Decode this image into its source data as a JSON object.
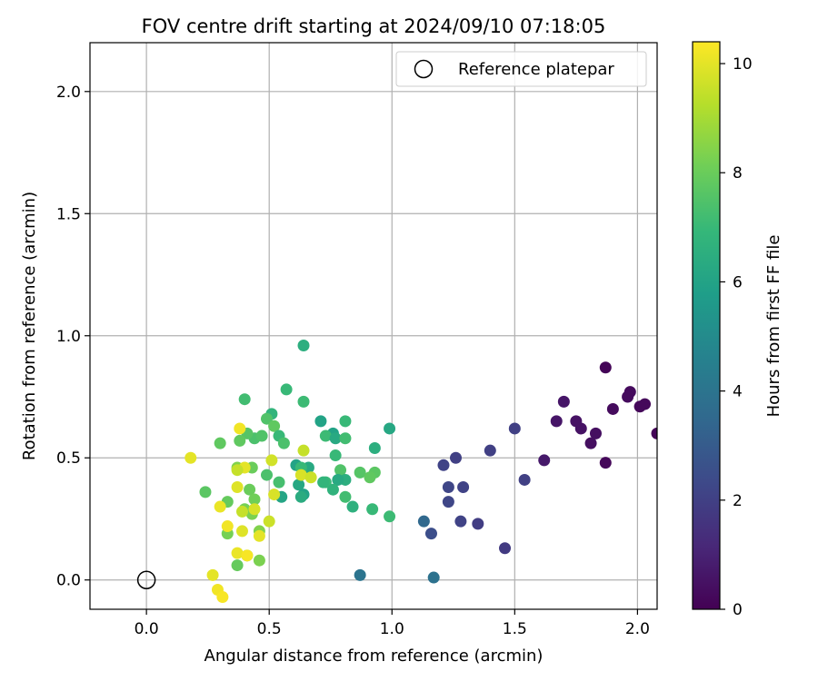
{
  "chart_data": {
    "type": "scatter",
    "title": "FOV centre drift starting at 2024/09/10 07:18:05",
    "xlabel": "Angular distance from reference (arcmin)",
    "ylabel": "Rotation from reference (arcmin)",
    "xlim": [
      -0.23,
      2.08
    ],
    "ylim": [
      -0.12,
      2.2
    ],
    "xticks": [
      "0.0",
      "0.5",
      "1.0",
      "1.5",
      "2.0"
    ],
    "xtick_values": [
      0,
      0.5,
      1.0,
      1.5,
      2.0
    ],
    "yticks": [
      "0.0",
      "0.5",
      "1.0",
      "1.5",
      "2.0"
    ],
    "ytick_values": [
      0,
      0.5,
      1.0,
      1.5,
      2.0
    ],
    "grid": true,
    "legend": {
      "label": "Reference platepar",
      "placement": "top-right"
    },
    "reference_point": {
      "x": 0,
      "y": 0
    },
    "colorbar": {
      "label": "Hours from first FF file",
      "range": [
        0,
        10.4
      ],
      "ticks": [
        "0",
        "2",
        "4",
        "6",
        "8",
        "10"
      ],
      "tick_values": [
        0,
        2,
        4,
        6,
        8,
        10
      ],
      "colormap": [
        "#440154",
        "#482878",
        "#3e4989",
        "#31688e",
        "#26828e",
        "#1f9e89",
        "#35b779",
        "#6ece58",
        "#b5de2b",
        "#fde725"
      ]
    },
    "points": [
      {
        "x": 1.87,
        "y": 0.87,
        "hours": 0.1
      },
      {
        "x": 2.08,
        "y": 0.6,
        "hours": 0.1
      },
      {
        "x": 2.03,
        "y": 0.72,
        "hours": 0.2
      },
      {
        "x": 2.01,
        "y": 0.71,
        "hours": 0.2
      },
      {
        "x": 1.97,
        "y": 0.77,
        "hours": 0.3
      },
      {
        "x": 1.96,
        "y": 0.75,
        "hours": 0.3
      },
      {
        "x": 1.9,
        "y": 0.7,
        "hours": 0.3
      },
      {
        "x": 1.87,
        "y": 0.48,
        "hours": 0.2
      },
      {
        "x": 1.83,
        "y": 0.6,
        "hours": 0.4
      },
      {
        "x": 1.81,
        "y": 0.56,
        "hours": 0.4
      },
      {
        "x": 1.77,
        "y": 0.62,
        "hours": 0.5
      },
      {
        "x": 1.75,
        "y": 0.65,
        "hours": 0.5
      },
      {
        "x": 1.7,
        "y": 0.73,
        "hours": 0.6
      },
      {
        "x": 1.67,
        "y": 0.65,
        "hours": 0.6
      },
      {
        "x": 1.62,
        "y": 0.49,
        "hours": 0.7
      },
      {
        "x": 1.5,
        "y": 0.62,
        "hours": 2.0
      },
      {
        "x": 1.54,
        "y": 0.41,
        "hours": 2.0
      },
      {
        "x": 1.4,
        "y": 0.53,
        "hours": 2.0
      },
      {
        "x": 1.46,
        "y": 0.13,
        "hours": 1.8
      },
      {
        "x": 1.35,
        "y": 0.23,
        "hours": 1.9
      },
      {
        "x": 1.28,
        "y": 0.24,
        "hours": 2.1
      },
      {
        "x": 1.29,
        "y": 0.38,
        "hours": 2.1
      },
      {
        "x": 1.26,
        "y": 0.5,
        "hours": 2.0
      },
      {
        "x": 1.23,
        "y": 0.38,
        "hours": 2.2
      },
      {
        "x": 1.23,
        "y": 0.32,
        "hours": 2.2
      },
      {
        "x": 1.21,
        "y": 0.47,
        "hours": 2.1
      },
      {
        "x": 1.16,
        "y": 0.19,
        "hours": 2.5
      },
      {
        "x": 1.13,
        "y": 0.24,
        "hours": 3.5
      },
      {
        "x": 1.17,
        "y": 0.01,
        "hours": 3.9
      },
      {
        "x": 0.87,
        "y": 0.02,
        "hours": 4.0
      },
      {
        "x": 0.64,
        "y": 0.96,
        "hours": 6.5
      },
      {
        "x": 0.57,
        "y": 0.78,
        "hours": 7.0
      },
      {
        "x": 0.64,
        "y": 0.73,
        "hours": 7.1
      },
      {
        "x": 0.4,
        "y": 0.74,
        "hours": 7.2
      },
      {
        "x": 0.51,
        "y": 0.68,
        "hours": 6.8
      },
      {
        "x": 0.71,
        "y": 0.65,
        "hours": 6.0
      },
      {
        "x": 0.81,
        "y": 0.65,
        "hours": 7.0
      },
      {
        "x": 0.99,
        "y": 0.62,
        "hours": 6.2
      },
      {
        "x": 0.49,
        "y": 0.66,
        "hours": 7.5
      },
      {
        "x": 0.52,
        "y": 0.63,
        "hours": 7.8
      },
      {
        "x": 0.76,
        "y": 0.6,
        "hours": 6.0
      },
      {
        "x": 0.73,
        "y": 0.59,
        "hours": 7.1
      },
      {
        "x": 0.77,
        "y": 0.58,
        "hours": 6.3
      },
      {
        "x": 0.81,
        "y": 0.58,
        "hours": 7.2
      },
      {
        "x": 0.54,
        "y": 0.59,
        "hours": 7.0
      },
      {
        "x": 0.44,
        "y": 0.58,
        "hours": 7.4
      },
      {
        "x": 0.41,
        "y": 0.6,
        "hours": 7.6
      },
      {
        "x": 0.38,
        "y": 0.57,
        "hours": 7.8
      },
      {
        "x": 0.47,
        "y": 0.59,
        "hours": 7.5
      },
      {
        "x": 0.56,
        "y": 0.56,
        "hours": 7.4
      },
      {
        "x": 0.3,
        "y": 0.56,
        "hours": 7.8
      },
      {
        "x": 0.93,
        "y": 0.54,
        "hours": 6.5
      },
      {
        "x": 0.77,
        "y": 0.51,
        "hours": 7.0
      },
      {
        "x": 0.66,
        "y": 0.46,
        "hours": 6.3
      },
      {
        "x": 0.61,
        "y": 0.47,
        "hours": 6.0
      },
      {
        "x": 0.63,
        "y": 0.46,
        "hours": 7.0
      },
      {
        "x": 0.79,
        "y": 0.45,
        "hours": 7.5
      },
      {
        "x": 0.87,
        "y": 0.44,
        "hours": 7.6
      },
      {
        "x": 0.93,
        "y": 0.44,
        "hours": 7.7
      },
      {
        "x": 0.91,
        "y": 0.42,
        "hours": 7.8
      },
      {
        "x": 0.81,
        "y": 0.41,
        "hours": 6.5
      },
      {
        "x": 0.78,
        "y": 0.41,
        "hours": 6.3
      },
      {
        "x": 0.73,
        "y": 0.4,
        "hours": 7.0
      },
      {
        "x": 0.72,
        "y": 0.4,
        "hours": 6.8
      },
      {
        "x": 0.62,
        "y": 0.39,
        "hours": 6.2
      },
      {
        "x": 0.54,
        "y": 0.4,
        "hours": 7.3
      },
      {
        "x": 0.49,
        "y": 0.43,
        "hours": 7.4
      },
      {
        "x": 0.43,
        "y": 0.46,
        "hours": 8.0
      },
      {
        "x": 0.76,
        "y": 0.37,
        "hours": 6.7
      },
      {
        "x": 0.64,
        "y": 0.35,
        "hours": 6.0
      },
      {
        "x": 0.55,
        "y": 0.34,
        "hours": 6.1
      },
      {
        "x": 0.63,
        "y": 0.34,
        "hours": 6.4
      },
      {
        "x": 0.81,
        "y": 0.34,
        "hours": 7.2
      },
      {
        "x": 0.84,
        "y": 0.3,
        "hours": 6.6
      },
      {
        "x": 0.92,
        "y": 0.29,
        "hours": 7.0
      },
      {
        "x": 0.99,
        "y": 0.26,
        "hours": 7.1
      },
      {
        "x": 0.42,
        "y": 0.37,
        "hours": 8.0
      },
      {
        "x": 0.37,
        "y": 0.46,
        "hours": 8.4
      },
      {
        "x": 0.24,
        "y": 0.36,
        "hours": 7.7
      },
      {
        "x": 0.33,
        "y": 0.32,
        "hours": 7.9
      },
      {
        "x": 0.44,
        "y": 0.33,
        "hours": 8.1
      },
      {
        "x": 0.4,
        "y": 0.29,
        "hours": 8.2
      },
      {
        "x": 0.43,
        "y": 0.27,
        "hours": 8.3
      },
      {
        "x": 0.46,
        "y": 0.2,
        "hours": 8.4
      },
      {
        "x": 0.33,
        "y": 0.19,
        "hours": 8.2
      },
      {
        "x": 0.41,
        "y": 0.1,
        "hours": 8.0
      },
      {
        "x": 0.46,
        "y": 0.08,
        "hours": 8.3
      },
      {
        "x": 0.37,
        "y": 0.06,
        "hours": 7.9
      },
      {
        "x": 0.38,
        "y": 0.62,
        "hours": 10.2
      },
      {
        "x": 0.18,
        "y": 0.5,
        "hours": 10.0
      },
      {
        "x": 0.51,
        "y": 0.49,
        "hours": 9.7
      },
      {
        "x": 0.64,
        "y": 0.53,
        "hours": 9.5
      },
      {
        "x": 0.4,
        "y": 0.46,
        "hours": 10.0
      },
      {
        "x": 0.37,
        "y": 0.45,
        "hours": 9.5
      },
      {
        "x": 0.63,
        "y": 0.43,
        "hours": 9.8
      },
      {
        "x": 0.67,
        "y": 0.42,
        "hours": 9.6
      },
      {
        "x": 0.37,
        "y": 0.38,
        "hours": 9.9
      },
      {
        "x": 0.52,
        "y": 0.35,
        "hours": 9.8
      },
      {
        "x": 0.3,
        "y": 0.3,
        "hours": 10.1
      },
      {
        "x": 0.39,
        "y": 0.28,
        "hours": 9.5
      },
      {
        "x": 0.44,
        "y": 0.29,
        "hours": 9.8
      },
      {
        "x": 0.5,
        "y": 0.24,
        "hours": 9.6
      },
      {
        "x": 0.33,
        "y": 0.22,
        "hours": 10.2
      },
      {
        "x": 0.39,
        "y": 0.2,
        "hours": 9.9
      },
      {
        "x": 0.46,
        "y": 0.18,
        "hours": 10.0
      },
      {
        "x": 0.37,
        "y": 0.11,
        "hours": 10.1
      },
      {
        "x": 0.41,
        "y": 0.1,
        "hours": 10.3
      },
      {
        "x": 0.27,
        "y": 0.02,
        "hours": 10.0
      },
      {
        "x": 0.29,
        "y": -0.04,
        "hours": 10.2
      },
      {
        "x": 0.31,
        "y": -0.07,
        "hours": 10.3
      }
    ]
  }
}
